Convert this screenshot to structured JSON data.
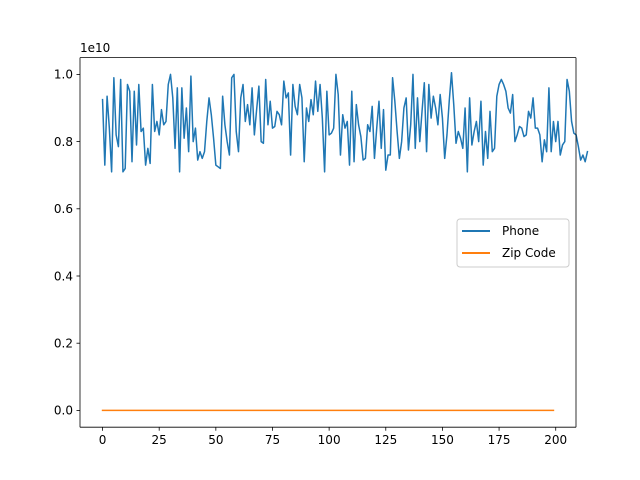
{
  "chart_data": {
    "type": "line",
    "title": "",
    "xlabel": "",
    "ylabel": "",
    "xlim": [
      -9.95,
      208.95
    ],
    "ylim": [
      -500000000.0,
      10500000000.0
    ],
    "y_offset_text": "1e10",
    "x_ticks": [
      0,
      25,
      50,
      75,
      100,
      125,
      150,
      175,
      200
    ],
    "x_tick_labels": [
      "0",
      "25",
      "50",
      "75",
      "100",
      "125",
      "150",
      "175",
      "200"
    ],
    "y_ticks": [
      0,
      2000000000.0,
      4000000000.0,
      6000000000.0,
      8000000000.0,
      10000000000.0
    ],
    "y_tick_labels": [
      "0.0",
      "0.2",
      "0.4",
      "0.6",
      "0.8",
      "1.0"
    ],
    "grid": false,
    "legend_position": "center-right",
    "series": [
      {
        "name": "Phone",
        "color": "#1f77b4",
        "x_start": 0,
        "x_step": 1,
        "values": [
          9250000000.0,
          7300000000.0,
          9350000000.0,
          8400000000.0,
          7100000000.0,
          9900000000.0,
          8200000000.0,
          7850000000.0,
          9850000000.0,
          7100000000.0,
          7200000000.0,
          9700000000.0,
          9500000000.0,
          7400000000.0,
          9500000000.0,
          7900000000.0,
          9700000000.0,
          8300000000.0,
          8400000000.0,
          7300000000.0,
          7800000000.0,
          7350000000.0,
          9700000000.0,
          8300000000.0,
          8600000000.0,
          8200000000.0,
          8950000000.0,
          8500000000.0,
          8600000000.0,
          9700000000.0,
          10000000000.0,
          9300000000.0,
          7800000000.0,
          9600000000.0,
          7100000000.0,
          9600000000.0,
          8100000000.0,
          9000000000.0,
          7700000000.0,
          9950000000.0,
          8000000000.0,
          8400000000.0,
          7450000000.0,
          7700000000.0,
          7500000000.0,
          7700000000.0,
          8600000000.0,
          9300000000.0,
          8800000000.0,
          8100000000.0,
          7300000000.0,
          7250000000.0,
          7200000000.0,
          9350000000.0,
          8500000000.0,
          8000000000.0,
          7600000000.0,
          9900000000.0,
          10000000000.0,
          8300000000.0,
          7700000000.0,
          9300000000.0,
          9700000000.0,
          8600000000.0,
          9100000000.0,
          8500000000.0,
          9600000000.0,
          8200000000.0,
          8950000000.0,
          9650000000.0,
          8000000000.0,
          7950000000.0,
          9850000000.0,
          8500000000.0,
          9200000000.0,
          8400000000.0,
          8450000000.0,
          8900000000.0,
          8800000000.0,
          8500000000.0,
          9800000000.0,
          9300000000.0,
          9450000000.0,
          7600000000.0,
          9700000000.0,
          9050000000.0,
          8800000000.0,
          9700000000.0,
          9300000000.0,
          7400000000.0,
          9000000000.0,
          8600000000.0,
          9250000000.0,
          8800000000.0,
          9800000000.0,
          8900000000.0,
          9700000000.0,
          8700000000.0,
          7100000000.0,
          9500000000.0,
          8200000000.0,
          8250000000.0,
          8400000000.0,
          10000000000.0,
          9400000000.0,
          7600000000.0,
          8800000000.0,
          8400000000.0,
          8600000000.0,
          7300000000.0,
          9500000000.0,
          7400000000.0,
          9100000000.0,
          8500000000.0,
          8150000000.0,
          7450000000.0,
          7500000000.0,
          8500000000.0,
          8300000000.0,
          9050000000.0,
          7500000000.0,
          8400000000.0,
          9200000000.0,
          7800000000.0,
          8950000000.0,
          7150000000.0,
          7600000000.0,
          7600000000.0,
          9900000000.0,
          9200000000.0,
          8300000000.0,
          7500000000.0,
          8000000000.0,
          9000000000.0,
          9300000000.0,
          7750000000.0,
          8500000000.0,
          10000000000.0,
          7800000000.0,
          9300000000.0,
          8000000000.0,
          8900000000.0,
          9750000000.0,
          7700000000.0,
          9700000000.0,
          8700000000.0,
          9350000000.0,
          9000000000.0,
          8500000000.0,
          9400000000.0,
          8700000000.0,
          7500000000.0,
          8200000000.0,
          9200000000.0,
          10050000000.0,
          9100000000.0,
          7950000000.0,
          8300000000.0,
          8100000000.0,
          7800000000.0,
          9000000000.0,
          7100000000.0,
          9300000000.0,
          7900000000.0,
          8300000000.0,
          8600000000.0,
          8000000000.0,
          9200000000.0,
          7300000000.0,
          8300000000.0,
          7500000000.0,
          8900000000.0,
          7700000000.0,
          7800000000.0,
          9350000000.0,
          9700000000.0,
          9850000000.0,
          9700000000.0,
          9500000000.0,
          9000000000.0,
          8850000000.0,
          9400000000.0,
          8000000000.0,
          8200000000.0,
          8450000000.0,
          8400000000.0,
          8150000000.0,
          8200000000.0,
          8900000000.0,
          8700000000.0,
          9300000000.0,
          8400000000.0,
          8400000000.0,
          8200000000.0,
          7400000000.0,
          8050000000.0,
          7700000000.0,
          9600000000.0,
          7700000000.0,
          8600000000.0,
          8000000000.0,
          8600000000.0,
          7600000000.0,
          7900000000.0,
          8000000000.0,
          9850000000.0,
          9500000000.0,
          8600000000.0,
          8250000000.0,
          8200000000.0,
          7850000000.0,
          7450000000.0,
          7600000000.0,
          7400000000.0,
          7700000000.0
        ]
      },
      {
        "name": "Zip Code",
        "color": "#ff7f0e",
        "x_start": 0,
        "x_step": 1,
        "count": 200,
        "constant_value": 50000
      }
    ]
  }
}
